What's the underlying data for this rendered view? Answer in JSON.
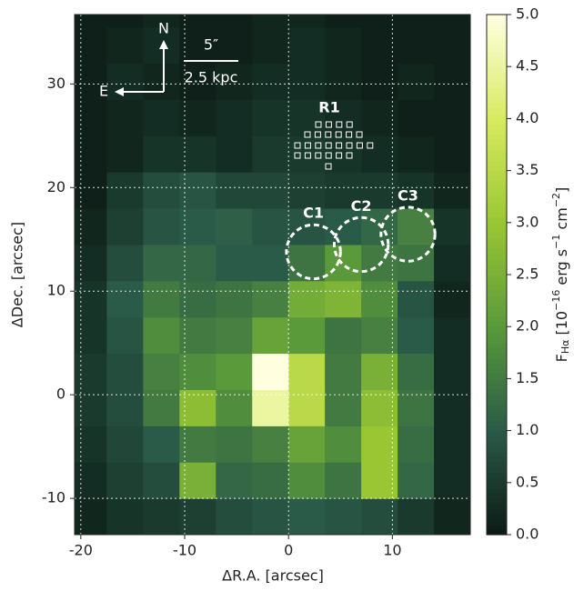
{
  "chart_data": {
    "type": "heatmap",
    "xlabel": "ΔR.A. [arcsec]",
    "ylabel": "ΔDec. [arcsec]",
    "xlim": [
      -20.6,
      17.5
    ],
    "ylim": [
      -13.5,
      36.7
    ],
    "xticks": [
      -20,
      -10,
      0,
      10
    ],
    "yticks": [
      -10,
      0,
      10,
      20,
      30
    ],
    "grid": true,
    "x_edges": [
      -21,
      -17.5,
      -14,
      -10.5,
      -7,
      -3.5,
      0,
      3.5,
      7,
      10.5,
      14,
      17.5
    ],
    "y_edges": [
      -13.5,
      -10,
      -6.5,
      -3,
      0.5,
      4,
      7.5,
      11,
      14.5,
      18,
      21.5,
      25,
      28.5,
      32,
      35.5,
      37
    ],
    "values": [
      [
        0.2,
        0.4,
        0.5,
        0.6,
        0.8,
        0.9,
        1.0,
        0.9,
        0.8,
        0.5,
        0.2
      ],
      [
        0.3,
        0.6,
        0.8,
        2.5,
        1.2,
        1.3,
        1.8,
        1.4,
        3.0,
        1.2,
        0.3
      ],
      [
        0.4,
        0.7,
        1.0,
        1.5,
        1.4,
        1.6,
        2.2,
        1.8,
        3.0,
        1.3,
        0.3
      ],
      [
        0.5,
        0.8,
        1.5,
        2.8,
        1.8,
        4.5,
        3.5,
        1.5,
        2.8,
        1.4,
        0.3
      ],
      [
        0.5,
        0.8,
        1.6,
        1.8,
        2.0,
        5.0,
        3.5,
        1.5,
        2.5,
        1.3,
        0.3
      ],
      [
        0.4,
        0.9,
        1.8,
        1.5,
        1.6,
        2.2,
        2.0,
        1.4,
        1.6,
        1.0,
        0.3
      ],
      [
        0.4,
        1.0,
        1.5,
        1.3,
        1.4,
        1.6,
        2.4,
        2.6,
        1.8,
        0.9,
        0.2
      ],
      [
        0.3,
        0.8,
        1.2,
        1.2,
        1.0,
        1.0,
        1.4,
        2.0,
        1.5,
        1.4,
        0.3
      ],
      [
        0.2,
        0.6,
        0.9,
        1.0,
        1.1,
        0.9,
        0.9,
        1.0,
        1.2,
        1.6,
        0.4
      ],
      [
        0.1,
        0.5,
        0.8,
        0.9,
        0.7,
        0.7,
        0.6,
        0.5,
        0.5,
        0.4,
        0.2
      ],
      [
        0.1,
        0.2,
        0.4,
        0.4,
        0.3,
        0.5,
        0.5,
        0.4,
        0.3,
        0.2,
        0.1
      ],
      [
        0.1,
        0.2,
        0.3,
        0.2,
        0.3,
        0.4,
        0.4,
        0.3,
        0.2,
        0.1,
        0.1
      ],
      [
        0.1,
        0.3,
        0.2,
        0.1,
        0.2,
        0.3,
        0.3,
        0.2,
        0.1,
        0.2,
        0.1
      ],
      [
        0.1,
        0.2,
        0.3,
        0.1,
        0.1,
        0.2,
        0.3,
        0.2,
        0.1,
        0.1,
        0.1
      ],
      [
        0.1,
        0.1,
        0.2,
        0.1,
        0.1,
        0.2,
        0.2,
        0.1,
        0.1,
        0.1,
        0.1
      ]
    ],
    "colormap": [
      "#0b1a14",
      "#2a5a48",
      "#5a9a3a",
      "#9ac634",
      "#d8ea60",
      "#ffffe0"
    ],
    "clim": [
      0,
      5
    ],
    "colorbar_ticks": [
      {
        "value": 0,
        "label": "0.0"
      },
      {
        "value": 0.5,
        "label": "0.5"
      },
      {
        "value": 1,
        "label": "1.0"
      },
      {
        "value": 1.5,
        "label": "1.5"
      },
      {
        "value": 2,
        "label": "2.0"
      },
      {
        "value": 2.5,
        "label": "2.5"
      },
      {
        "value": 3,
        "label": "3.0"
      },
      {
        "value": 3.5,
        "label": "3.5"
      },
      {
        "value": 4,
        "label": "4.0"
      },
      {
        "value": 4.5,
        "label": "4.5"
      },
      {
        "value": 5,
        "label": "5.0"
      }
    ],
    "colorbar_label": [
      "F",
      "Hα",
      " [10",
      "−16",
      " erg s",
      "−1",
      " cm",
      "−2",
      "]"
    ],
    "regions": [
      {
        "label": "C1",
        "x": 2.4,
        "y": 13.8,
        "r": 2.6
      },
      {
        "label": "C2",
        "x": 7.0,
        "y": 14.5,
        "r": 2.6
      },
      {
        "label": "C3",
        "x": 11.5,
        "y": 15.5,
        "r": 2.6
      }
    ],
    "r1_label": "R1",
    "compass": {
      "north": "N",
      "east": "E"
    },
    "scale_bar": {
      "angle": "5″",
      "distance": "2.5 kpc"
    }
  }
}
